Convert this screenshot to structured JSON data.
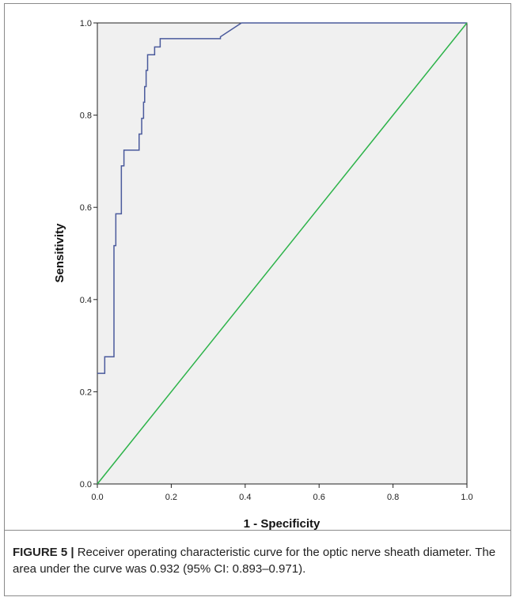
{
  "chart_data": {
    "type": "line",
    "xlabel": "1 - Specificity",
    "ylabel": "Sensitivity",
    "xlim": [
      0.0,
      1.0
    ],
    "ylim": [
      0.0,
      1.0
    ],
    "x_ticks": [
      "0.0",
      "0.2",
      "0.4",
      "0.6",
      "0.8",
      "1.0"
    ],
    "y_ticks": [
      "0.0",
      "0.2",
      "0.4",
      "0.6",
      "0.8",
      "1.0"
    ],
    "grid": false,
    "series": [
      {
        "color": "#4a5a9c",
        "points": [
          [
            0.0,
            0.24
          ],
          [
            0.02,
            0.24
          ],
          [
            0.02,
            0.276
          ],
          [
            0.045,
            0.276
          ],
          [
            0.045,
            0.517
          ],
          [
            0.05,
            0.517
          ],
          [
            0.05,
            0.586
          ],
          [
            0.065,
            0.586
          ],
          [
            0.065,
            0.69
          ],
          [
            0.072,
            0.69
          ],
          [
            0.072,
            0.724
          ],
          [
            0.113,
            0.724
          ],
          [
            0.113,
            0.759
          ],
          [
            0.12,
            0.759
          ],
          [
            0.12,
            0.793
          ],
          [
            0.125,
            0.793
          ],
          [
            0.125,
            0.828
          ],
          [
            0.128,
            0.828
          ],
          [
            0.128,
            0.862
          ],
          [
            0.132,
            0.862
          ],
          [
            0.132,
            0.897
          ],
          [
            0.136,
            0.897
          ],
          [
            0.136,
            0.931
          ],
          [
            0.155,
            0.931
          ],
          [
            0.155,
            0.948
          ],
          [
            0.17,
            0.948
          ],
          [
            0.17,
            0.966
          ],
          [
            0.333,
            0.966
          ],
          [
            0.333,
            0.97
          ],
          [
            0.39,
            1.0
          ],
          [
            1.0,
            1.0
          ]
        ]
      },
      {
        "color": "#2db34a",
        "points": [
          [
            0.0,
            0.0
          ],
          [
            1.0,
            1.0
          ]
        ]
      }
    ]
  },
  "caption": {
    "label": "FIGURE 5 |",
    "text": "Receiver operating characteristic curve for the optic nerve sheath diameter. The area under the curve was 0.932 (95% CI: 0.893–0.971)."
  }
}
